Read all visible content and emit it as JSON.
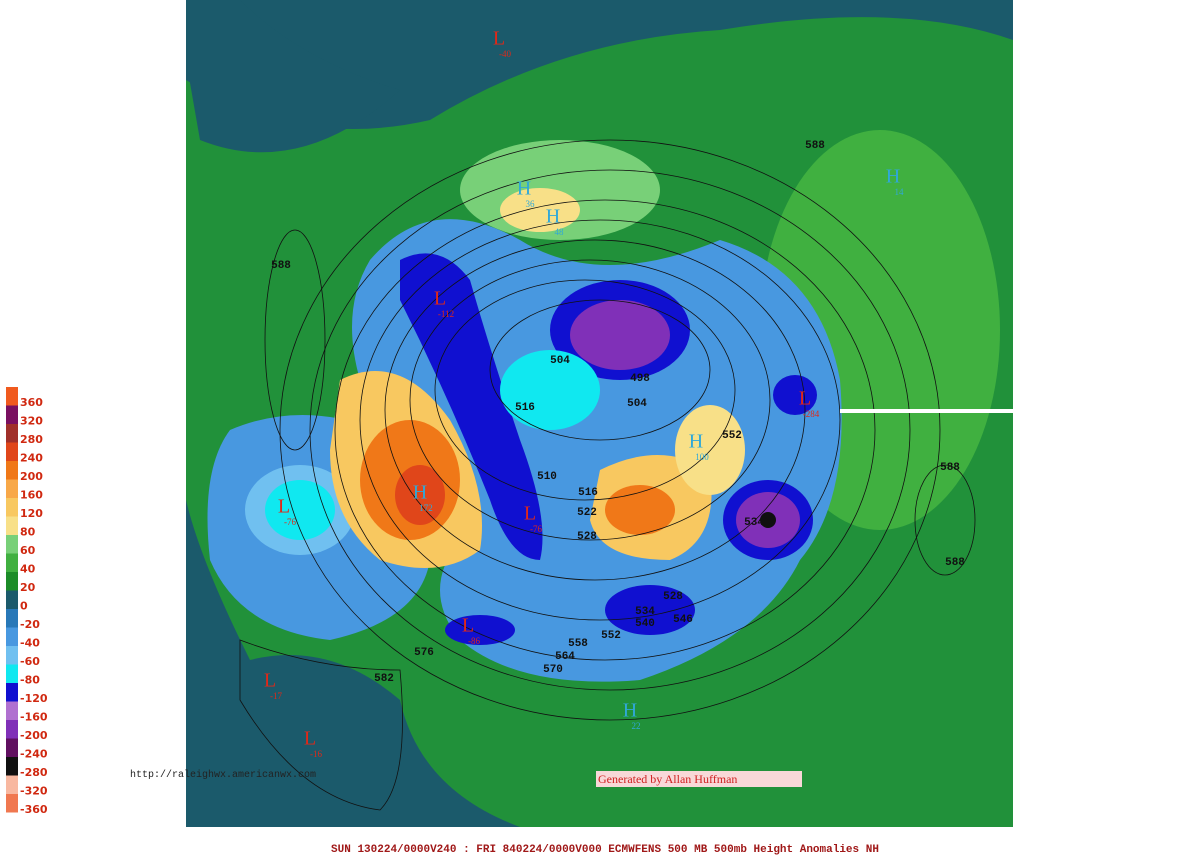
{
  "legend": {
    "labels": [
      "360",
      "320",
      "280",
      "240",
      "200",
      "160",
      "120",
      "80",
      "60",
      "40",
      "20",
      "0",
      "-20",
      "-40",
      "-60",
      "-80",
      "-120",
      "-160",
      "-200",
      "-240",
      "-280",
      "-320",
      "-360"
    ],
    "colors": [
      "#f05a1e",
      "#7a1060",
      "#a0302a",
      "#e0461a",
      "#f07818",
      "#f8a848",
      "#f8c860",
      "#f8e088",
      "#78d078",
      "#40b040",
      "#1c8c28",
      "#1b5a6b",
      "#2878b8",
      "#4898e0",
      "#70c0f0",
      "#10e8f0",
      "#1010d0",
      "#b070d0",
      "#8030b8",
      "#601060",
      "#101010",
      "#f8b8a0",
      "#f07850"
    ]
  },
  "contour_labels": [
    "588",
    "588",
    "504",
    "498",
    "504",
    "516",
    "552",
    "588",
    "510",
    "516",
    "522",
    "528",
    "534",
    "588",
    "528",
    "534",
    "540",
    "546",
    "552",
    "558",
    "564",
    "570",
    "576",
    "582"
  ],
  "centers": [
    {
      "letter": "L",
      "value": "-40",
      "color": "#e02818"
    },
    {
      "letter": "H",
      "value": "36",
      "color": "#30a8d8"
    },
    {
      "letter": "H",
      "value": "48",
      "color": "#30a8d8"
    },
    {
      "letter": "H",
      "value": "14",
      "color": "#30a8d8"
    },
    {
      "letter": "L",
      "value": "-76",
      "color": "#e02818"
    },
    {
      "letter": "H",
      "value": "172",
      "color": "#30a8d8"
    },
    {
      "letter": "L",
      "value": "-112",
      "color": "#e02818"
    },
    {
      "letter": "H",
      "value": "100",
      "color": "#30a8d8"
    },
    {
      "letter": "L",
      "value": "-284",
      "color": "#e02818"
    },
    {
      "letter": "L",
      "value": "-76",
      "color": "#e02818"
    },
    {
      "letter": "L",
      "value": "-86",
      "color": "#e02818"
    },
    {
      "letter": "L",
      "value": "-17",
      "color": "#e02818"
    },
    {
      "letter": "L",
      "value": "-16",
      "color": "#e02818"
    },
    {
      "letter": "H",
      "value": "22",
      "color": "#30a8d8"
    }
  ],
  "url": "http://raleighwx.americanwx.com",
  "credit": "Generated by Allan Huffman",
  "footer": "SUN 130224/0000V240 : FRI 840224/0000V000  ECMWFENS  500 MB 500mb Height Anomalies NH"
}
